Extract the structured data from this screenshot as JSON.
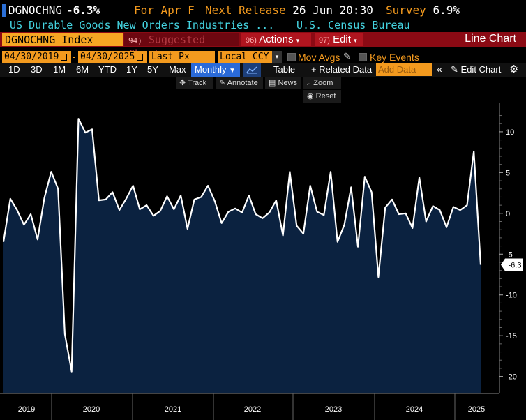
{
  "header": {
    "ticker": "DGNOCHNG",
    "last_value": "-6.3%",
    "for_label": "For Apr F",
    "next_release_label": "Next Release",
    "next_release_value": "26 Jun 20:30",
    "survey_label": "Survey",
    "survey_value": "6.9%"
  },
  "subheader": {
    "name": "US Durable Goods New Orders Industries ...",
    "source": "U.S. Census Bureau"
  },
  "toolbar": {
    "security": "DGNOCHNG Index",
    "suggested_num": "94)",
    "suggested_label": "Suggested Charts",
    "actions_num": "96)",
    "actions_label": "Actions",
    "edit_num": "97)",
    "edit_label": "Edit",
    "chart_title": "Line Chart"
  },
  "settings": {
    "start_date": "04/30/2019",
    "end_date": "04/30/2025",
    "field": "Last Px",
    "currency": "Local CCY",
    "mov_avgs": "Mov Avgs",
    "key_events": "Key Events"
  },
  "timeframes": {
    "items": [
      "1D",
      "3D",
      "1M",
      "6M",
      "YTD",
      "1Y",
      "5Y",
      "Max"
    ],
    "periodicity": "Monthly",
    "table": "Table",
    "related": "+ Related Data",
    "add_data_placeholder": "Add Data",
    "edit_chart": "Edit Chart"
  },
  "chart_tools": {
    "track": "Track",
    "annotate": "Annotate",
    "news": "News",
    "zoom": "Zoom",
    "reset": "Reset"
  },
  "chart_data": {
    "type": "area",
    "series": [
      {
        "values": [
          -3.5,
          1.8,
          0.4,
          -1.4,
          -0.1,
          -3.2,
          1.9,
          5.1,
          3.0,
          -14.8,
          -19.4,
          11.6,
          9.9,
          10.3,
          1.6,
          1.7,
          2.6,
          0.4,
          1.8,
          3.4,
          0.5,
          1.0,
          -0.3,
          0.3,
          2.1,
          0.5,
          2.2,
          -1.9,
          1.7,
          2.0,
          3.4,
          1.5,
          -1.2,
          0.2,
          0.6,
          0.1,
          2.2,
          -0.1,
          -0.6,
          0.1,
          1.6,
          -2.7,
          5.1,
          -1.5,
          -2.5,
          3.4,
          0.2,
          -0.2,
          5.1,
          -3.5,
          -1.4,
          3.2,
          -4.1,
          4.5,
          2.6,
          -7.8,
          0.7,
          1.7,
          -0.1,
          0.0,
          -1.8,
          4.4,
          -1.0,
          0.9,
          0.4,
          -1.7,
          0.8,
          0.4,
          1.0,
          7.6,
          -6.3
        ]
      }
    ],
    "ylim": [
      -22,
      13.5
    ],
    "yticks": [
      10,
      5,
      0,
      -5,
      -10,
      -15,
      -20
    ],
    "year_labels": [
      "2019",
      "2020",
      "2021",
      "2022",
      "2023",
      "2024",
      "2025"
    ],
    "last_label": "-6.3",
    "grid": false
  },
  "colors": {
    "orange": "#f39a1e",
    "cyan": "#44d3e0",
    "red_bar": "#8b0a14",
    "area_fill": "#0b2240",
    "line": "#ffffff"
  }
}
